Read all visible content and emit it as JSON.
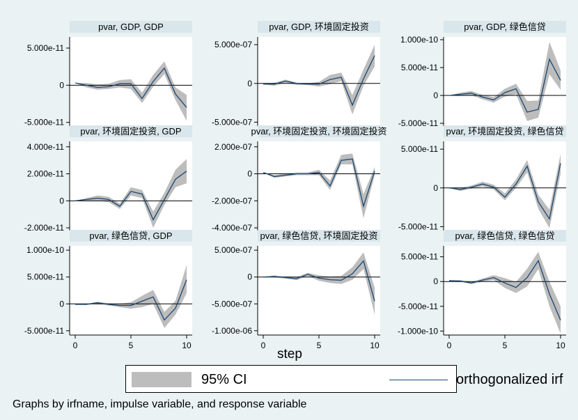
{
  "chart_data": {
    "type": "line",
    "x_axis_label": "step",
    "x_ticks": [
      0,
      5,
      10
    ],
    "legend": {
      "ci_label": "95% CI",
      "line_label": "orthogonalized irf"
    },
    "note": "Graphs by irfname, impulse variable, and response variable",
    "colors": {
      "ci_band": "#bdbdbd",
      "irf_line": "#1a476f",
      "title_bar": "#d9e6eb",
      "background": "#eaf2f3"
    },
    "panels": [
      {
        "title": "pvar, GDP, GDP",
        "ylim": [
          -5.5e-11,
          6.5e-11
        ],
        "yticks": [
          5e-11,
          0,
          -5e-11
        ],
        "ytick_labels": [
          "5.000e-11",
          "0",
          "-5.000e-11"
        ],
        "irf": [
          3e-12,
          0.0,
          -3e-12,
          -2e-12,
          2e-12,
          2e-12,
          -1.8e-11,
          5e-12,
          2.3e-11,
          -1.2e-11,
          -3e-11
        ],
        "lower": [
          3e-12,
          -3e-12,
          -6e-12,
          -5e-12,
          -3e-12,
          -5e-12,
          -2.4e-11,
          -2e-12,
          1.5e-11,
          -2e-11,
          -4.8e-11
        ],
        "upper": [
          3e-12,
          3e-12,
          1e-12,
          2e-12,
          7e-12,
          8e-12,
          -1e-11,
          1.4e-11,
          3.2e-11,
          -3e-12,
          -1.3e-11
        ]
      },
      {
        "title": "pvar, GDP, 环境固定投资",
        "ylim": [
          -5.5e-07,
          6e-07
        ],
        "yticks": [
          5e-07,
          0,
          -5e-07
        ],
        "ytick_labels": [
          "5.000e-07",
          "0",
          "-5.000e-07"
        ],
        "irf": [
          -1e-08,
          -1e-08,
          3e-08,
          0.0,
          -1e-08,
          -1e-08,
          5e-08,
          8e-08,
          -2.8e-07,
          6e-08,
          3.6e-07
        ],
        "lower": [
          -1e-08,
          -3e-08,
          1e-08,
          -2e-08,
          -2e-08,
          -4e-08,
          -1e-08,
          3e-08,
          -4e-07,
          -3e-08,
          2.2e-07
        ],
        "upper": [
          -1e-08,
          1e-08,
          5e-08,
          1e-08,
          0.0,
          2e-08,
          1.1e-07,
          1.4e-07,
          -1.5e-07,
          1.8e-07,
          5e-07
        ]
      },
      {
        "title": "pvar, GDP, 绿色信贷",
        "ylim": [
          -5.5e-11,
          1.05e-10
        ],
        "yticks": [
          1e-10,
          5e-11,
          0,
          -5e-11
        ],
        "ytick_labels": [
          "1.000e-10",
          "5.000e-11",
          "0",
          "-5.000e-11"
        ],
        "irf": [
          0.0,
          2e-12,
          4e-12,
          -3e-12,
          -8e-12,
          5e-12,
          1.2e-11,
          -3e-11,
          -2.5e-11,
          6.5e-11,
          2.7e-11
        ],
        "lower": [
          0.0,
          -1e-12,
          0.0,
          -7e-12,
          -1.3e-11,
          -2e-12,
          2e-12,
          -4.6e-11,
          -4e-11,
          3.8e-11,
          1e-11
        ],
        "upper": [
          0.0,
          5e-12,
          8e-12,
          1e-12,
          -3e-12,
          1.2e-11,
          2.1e-11,
          -1e-11,
          -9e-12,
          9.6e-11,
          4.5e-11
        ]
      },
      {
        "title": "pvar, 环境固定投资, GDP",
        "ylim": [
          -2.2e-11,
          4.4e-11
        ],
        "yticks": [
          4e-11,
          2e-11,
          0,
          -2e-11
        ],
        "ytick_labels": [
          "4.000e-11",
          "2.000e-11",
          "0",
          "-2.000e-11"
        ],
        "irf": [
          0.0,
          1e-12,
          2e-12,
          1e-12,
          -4e-12,
          7e-12,
          5e-12,
          -1.4e-11,
          1e-12,
          1.6e-11,
          2.2e-11
        ],
        "lower": [
          0.0,
          0.0,
          0.0,
          -1e-12,
          -6e-12,
          4e-12,
          2e-12,
          -2e-11,
          -3e-12,
          1e-11,
          1.3e-11
        ],
        "upper": [
          0.0,
          2e-12,
          4e-12,
          3e-12,
          -2e-12,
          1e-11,
          8e-12,
          -8e-12,
          6e-12,
          2.3e-11,
          3.1e-11
        ]
      },
      {
        "title": "pvar, 环境固定投资, 环境固定投资",
        "ylim": [
          -4.2e-07,
          2.4e-07
        ],
        "yticks": [
          2e-07,
          0,
          -2e-07,
          -4e-07
        ],
        "ytick_labels": [
          "2.000e-07",
          "0",
          "-2.000e-07",
          "-4.000e-07"
        ],
        "irf": [
          1e-08,
          -2e-08,
          -1e-08,
          0.0,
          0.0,
          1e-08,
          -9e-08,
          1e-07,
          1.1e-07,
          -2.4e-07,
          2e-08
        ],
        "lower": [
          1e-08,
          -3e-08,
          -2e-08,
          -1e-08,
          -1e-08,
          -1e-08,
          -1.2e-07,
          7e-08,
          7e-08,
          -3.3e-07,
          -1e-08
        ],
        "upper": [
          1e-08,
          -1e-08,
          0.0,
          1e-08,
          1e-08,
          3e-08,
          -5e-08,
          1.4e-07,
          1.5e-07,
          -1.5e-07,
          5e-08
        ]
      },
      {
        "title": "pvar, 环境固定投资, 绿色信贷",
        "ylim": [
          -5.5e-11,
          6e-11
        ],
        "yticks": [
          5e-11,
          0,
          -5e-11
        ],
        "ytick_labels": [
          "5.000e-11",
          "0",
          "-5.000e-11"
        ],
        "irf": [
          0.0,
          -2e-12,
          1e-12,
          5e-12,
          1e-12,
          -1.2e-11,
          5e-12,
          2.8e-11,
          -1.8e-11,
          -4e-11,
          3.2e-11
        ],
        "lower": [
          0.0,
          -4e-12,
          -1e-12,
          2e-12,
          -2e-12,
          -1.6e-11,
          0.0,
          2e-11,
          -2.7e-11,
          -5.2e-11,
          1.8e-11
        ],
        "upper": [
          0.0,
          0.0,
          3e-12,
          8e-12,
          4e-12,
          -7e-12,
          1.1e-11,
          3.6e-11,
          -9e-12,
          -2.8e-11,
          4.4e-11
        ]
      },
      {
        "title": "pvar, 绿色信贷, GDP",
        "ylim": [
          -5.8e-11,
          1.08e-10
        ],
        "yticks": [
          1e-10,
          5e-11,
          0,
          -5e-11
        ],
        "ytick_labels": [
          "1.000e-10",
          "5.000e-11",
          "0",
          "-5.000e-11"
        ],
        "irf": [
          -1e-12,
          -1e-12,
          2e-12,
          -1e-12,
          -3e-12,
          -3e-12,
          5e-12,
          1.3e-11,
          -3e-11,
          -8e-12,
          4.5e-11
        ],
        "lower": [
          -1e-12,
          -2e-12,
          0.0,
          -3e-12,
          -6e-12,
          -9e-12,
          -6e-12,
          0.0,
          -4.5e-11,
          -2e-11,
          2e-11
        ],
        "upper": [
          -1e-12,
          0.0,
          4e-12,
          1e-12,
          0.0,
          3e-12,
          1.5e-11,
          2.6e-11,
          -1.5e-11,
          6e-12,
          7.2e-11
        ]
      },
      {
        "title": "pvar, 绿色信贷, 环境固定投资",
        "ylim": [
          -1.08e-06,
          5.8e-07
        ],
        "yticks": [
          5e-07,
          0,
          -5e-07,
          -1e-06
        ],
        "ytick_labels": [
          "5.000e-07",
          "0",
          "-5.000e-07",
          "-1.000e-06"
        ],
        "irf": [
          0.0,
          1e-08,
          -1e-08,
          -3e-08,
          5e-08,
          -2e-08,
          -5e-08,
          -6e-08,
          6e-08,
          3e-07,
          -4.5e-07
        ],
        "lower": [
          0.0,
          -1e-08,
          -3e-08,
          -6e-08,
          2e-08,
          -7e-08,
          -1.1e-07,
          -1.3e-07,
          -5e-08,
          1.5e-07,
          -7e-07
        ],
        "upper": [
          0.0,
          3e-08,
          1e-08,
          0.0,
          8e-08,
          3e-08,
          1e-08,
          2e-08,
          1.8e-07,
          4.6e-07,
          -2e-07
        ]
      },
      {
        "title": "pvar, 绿色信贷, 绿色信贷",
        "ylim": [
          -1.08e-10,
          7.2e-11
        ],
        "yticks": [
          5e-11,
          0,
          -5e-11,
          -1e-10
        ],
        "ytick_labels": [
          "5.000e-11",
          "0",
          "-5.000e-11",
          "-1.000e-10"
        ],
        "irf": [
          2e-12,
          1e-12,
          -3e-12,
          3e-12,
          8e-12,
          -3e-12,
          -1.2e-11,
          8e-12,
          4.2e-11,
          -2.5e-11,
          -7.8e-11
        ],
        "lower": [
          2e-12,
          -1e-12,
          -5e-12,
          0.0,
          3e-12,
          -1.3e-11,
          -2.3e-11,
          -1e-11,
          2.5e-11,
          -5e-11,
          -1.05e-10
        ],
        "upper": [
          2e-12,
          3e-12,
          -1e-12,
          6e-12,
          1.3e-11,
          7e-12,
          -1e-12,
          2.6e-11,
          6e-11,
          0.0,
          -5e-11
        ]
      }
    ]
  }
}
